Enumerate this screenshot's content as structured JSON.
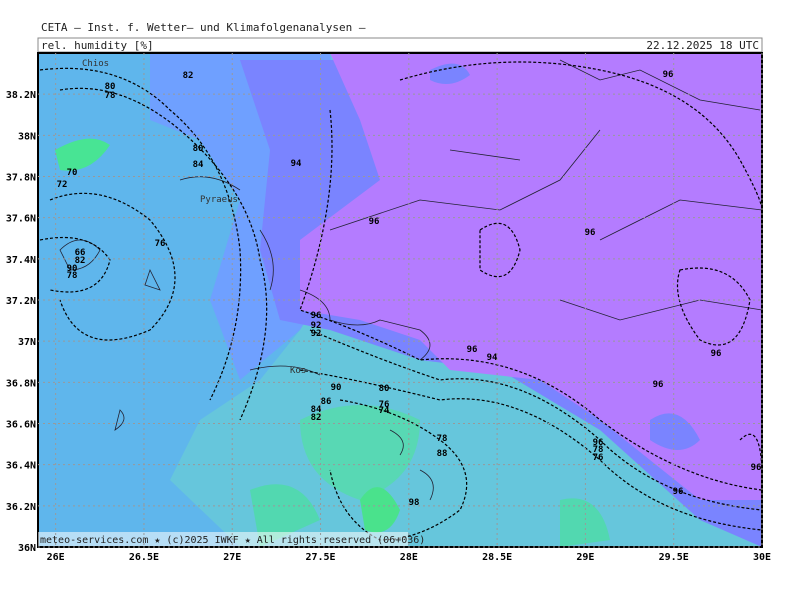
{
  "header": {
    "title": "CETA — Inst. f. Wetter— und Klimafolgenanalysen —",
    "parameter": "rel. humidity [%]",
    "valid_time": "22.12.2025 18 UTC"
  },
  "map": {
    "lon_range": [
      25.9,
      30
    ],
    "lat_range": [
      36,
      38.4
    ],
    "lon_ticks": [
      {
        "value": 26,
        "label": "26E"
      },
      {
        "value": 26.5,
        "label": "26.5E"
      },
      {
        "value": 27,
        "label": "27E"
      },
      {
        "value": 27.5,
        "label": "27.5E"
      },
      {
        "value": 28,
        "label": "28E"
      },
      {
        "value": 28.5,
        "label": "28.5E"
      },
      {
        "value": 29,
        "label": "29E"
      },
      {
        "value": 29.5,
        "label": "29.5E"
      },
      {
        "value": 30,
        "label": "30E"
      }
    ],
    "lat_ticks": [
      {
        "value": 36,
        "label": "36N"
      },
      {
        "value": 36.2,
        "label": "36.2N"
      },
      {
        "value": 36.4,
        "label": "36.4N"
      },
      {
        "value": 36.6,
        "label": "36.6N"
      },
      {
        "value": 36.8,
        "label": "36.8N"
      },
      {
        "value": 37,
        "label": "37N"
      },
      {
        "value": 37.2,
        "label": "37.2N"
      },
      {
        "value": 37.4,
        "label": "37.4N"
      },
      {
        "value": 37.6,
        "label": "37.6N"
      },
      {
        "value": 37.8,
        "label": "37.8N"
      },
      {
        "value": 38,
        "label": "38N"
      },
      {
        "value": 38.2,
        "label": "38.2N"
      }
    ],
    "places": [
      "Chios",
      "Pyraeus",
      "Kos"
    ],
    "contour_labels": [
      "80",
      "78",
      "82",
      "96",
      "80",
      "84",
      "94",
      "70",
      "72",
      "96",
      "96",
      "76",
      "66",
      "82",
      "90",
      "78",
      "96",
      "92",
      "92",
      "96",
      "94",
      "96",
      "96",
      "90",
      "80",
      "76",
      "86",
      "84",
      "82",
      "74",
      "78",
      "88",
      "96",
      "78",
      "76",
      "96",
      "96",
      "98"
    ]
  },
  "footer": "meteo-services.com ★ (c)2025 IWKF ★ All rights reserved (06+036)"
}
